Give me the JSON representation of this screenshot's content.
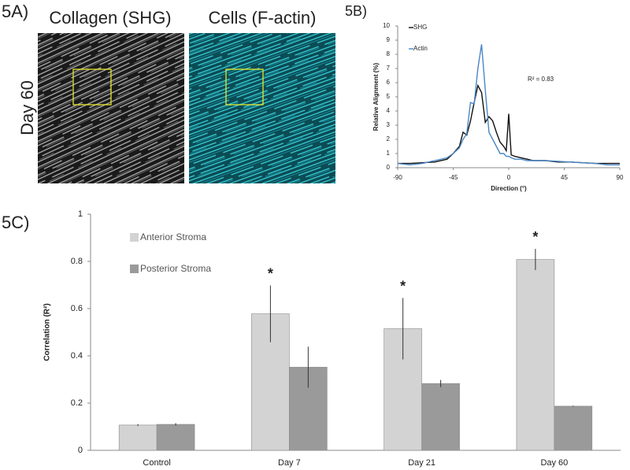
{
  "figure": {
    "panel_a": {
      "label": "5A)",
      "row_label": "Day 60",
      "images": [
        "Collagen (SHG)",
        "Cells (F-actin)"
      ]
    }
  },
  "chart_data": [
    {
      "type": "line",
      "panel_label": "5B)",
      "x": [
        -90,
        -80,
        -70,
        -60,
        -50,
        -45,
        -40,
        -37,
        -34,
        -31,
        -28,
        -25,
        -22,
        -19,
        -16,
        -13,
        -10,
        -7,
        -4,
        -2,
        0,
        2,
        5,
        10,
        15,
        20,
        30,
        40,
        50,
        60,
        70,
        80,
        90
      ],
      "series": [
        {
          "name": "SHG",
          "color": "#111111",
          "values": [
            0.3,
            0.3,
            0.35,
            0.4,
            0.6,
            1.0,
            1.5,
            2.5,
            2.3,
            3.3,
            4.6,
            5.8,
            5.3,
            3.2,
            3.6,
            3.3,
            2.5,
            1.8,
            1.5,
            1.2,
            3.8,
            0.9,
            0.8,
            0.7,
            0.6,
            0.5,
            0.5,
            0.4,
            0.4,
            0.35,
            0.3,
            0.3,
            0.3
          ]
        },
        {
          "name": "Actin",
          "color": "#4a86c5",
          "values": [
            0.3,
            0.2,
            0.3,
            0.5,
            0.7,
            1.0,
            1.4,
            2.0,
            2.4,
            4.6,
            4.5,
            7.0,
            8.7,
            5.5,
            2.5,
            2.0,
            1.5,
            1.0,
            1.0,
            0.8,
            0.8,
            0.7,
            0.6,
            0.6,
            0.5,
            0.5,
            0.5,
            0.45,
            0.4,
            0.35,
            0.3,
            0.2,
            0.2
          ]
        }
      ],
      "xlabel": "Direction (°)",
      "ylabel": "Relative Alignment (%)",
      "xlim": [
        -90,
        90
      ],
      "ylim": [
        0,
        10
      ],
      "xticks": [
        -90,
        -45,
        0,
        45,
        90
      ],
      "yticks": [
        0,
        1,
        2,
        3,
        4,
        5,
        6,
        7,
        8,
        9,
        10
      ],
      "annotations": [
        "R² = 0.83"
      ],
      "legend": "upper left"
    },
    {
      "type": "bar",
      "panel_label": "5C)",
      "categories": [
        "Control",
        "Day 7",
        "Day 21",
        "Day 60"
      ],
      "series": [
        {
          "name": "Anterior Stroma",
          "color": "#d3d3d3",
          "values": [
            0.107,
            0.578,
            0.515,
            0.808
          ],
          "errors": [
            0.004,
            0.12,
            0.13,
            0.045
          ]
        },
        {
          "name": "Posterior Stroma",
          "color": "#9a9a9a",
          "values": [
            0.11,
            0.352,
            0.283,
            0.187
          ],
          "errors": [
            0.005,
            0.087,
            0.015,
            0.002
          ]
        }
      ],
      "significance": [
        null,
        "*",
        "*",
        "*"
      ],
      "ylabel": "Correlation (R²)",
      "ylim": [
        0,
        1
      ],
      "yticks": [
        0,
        0.2,
        0.4,
        0.6,
        0.8,
        1
      ],
      "legend": "upper left"
    }
  ]
}
